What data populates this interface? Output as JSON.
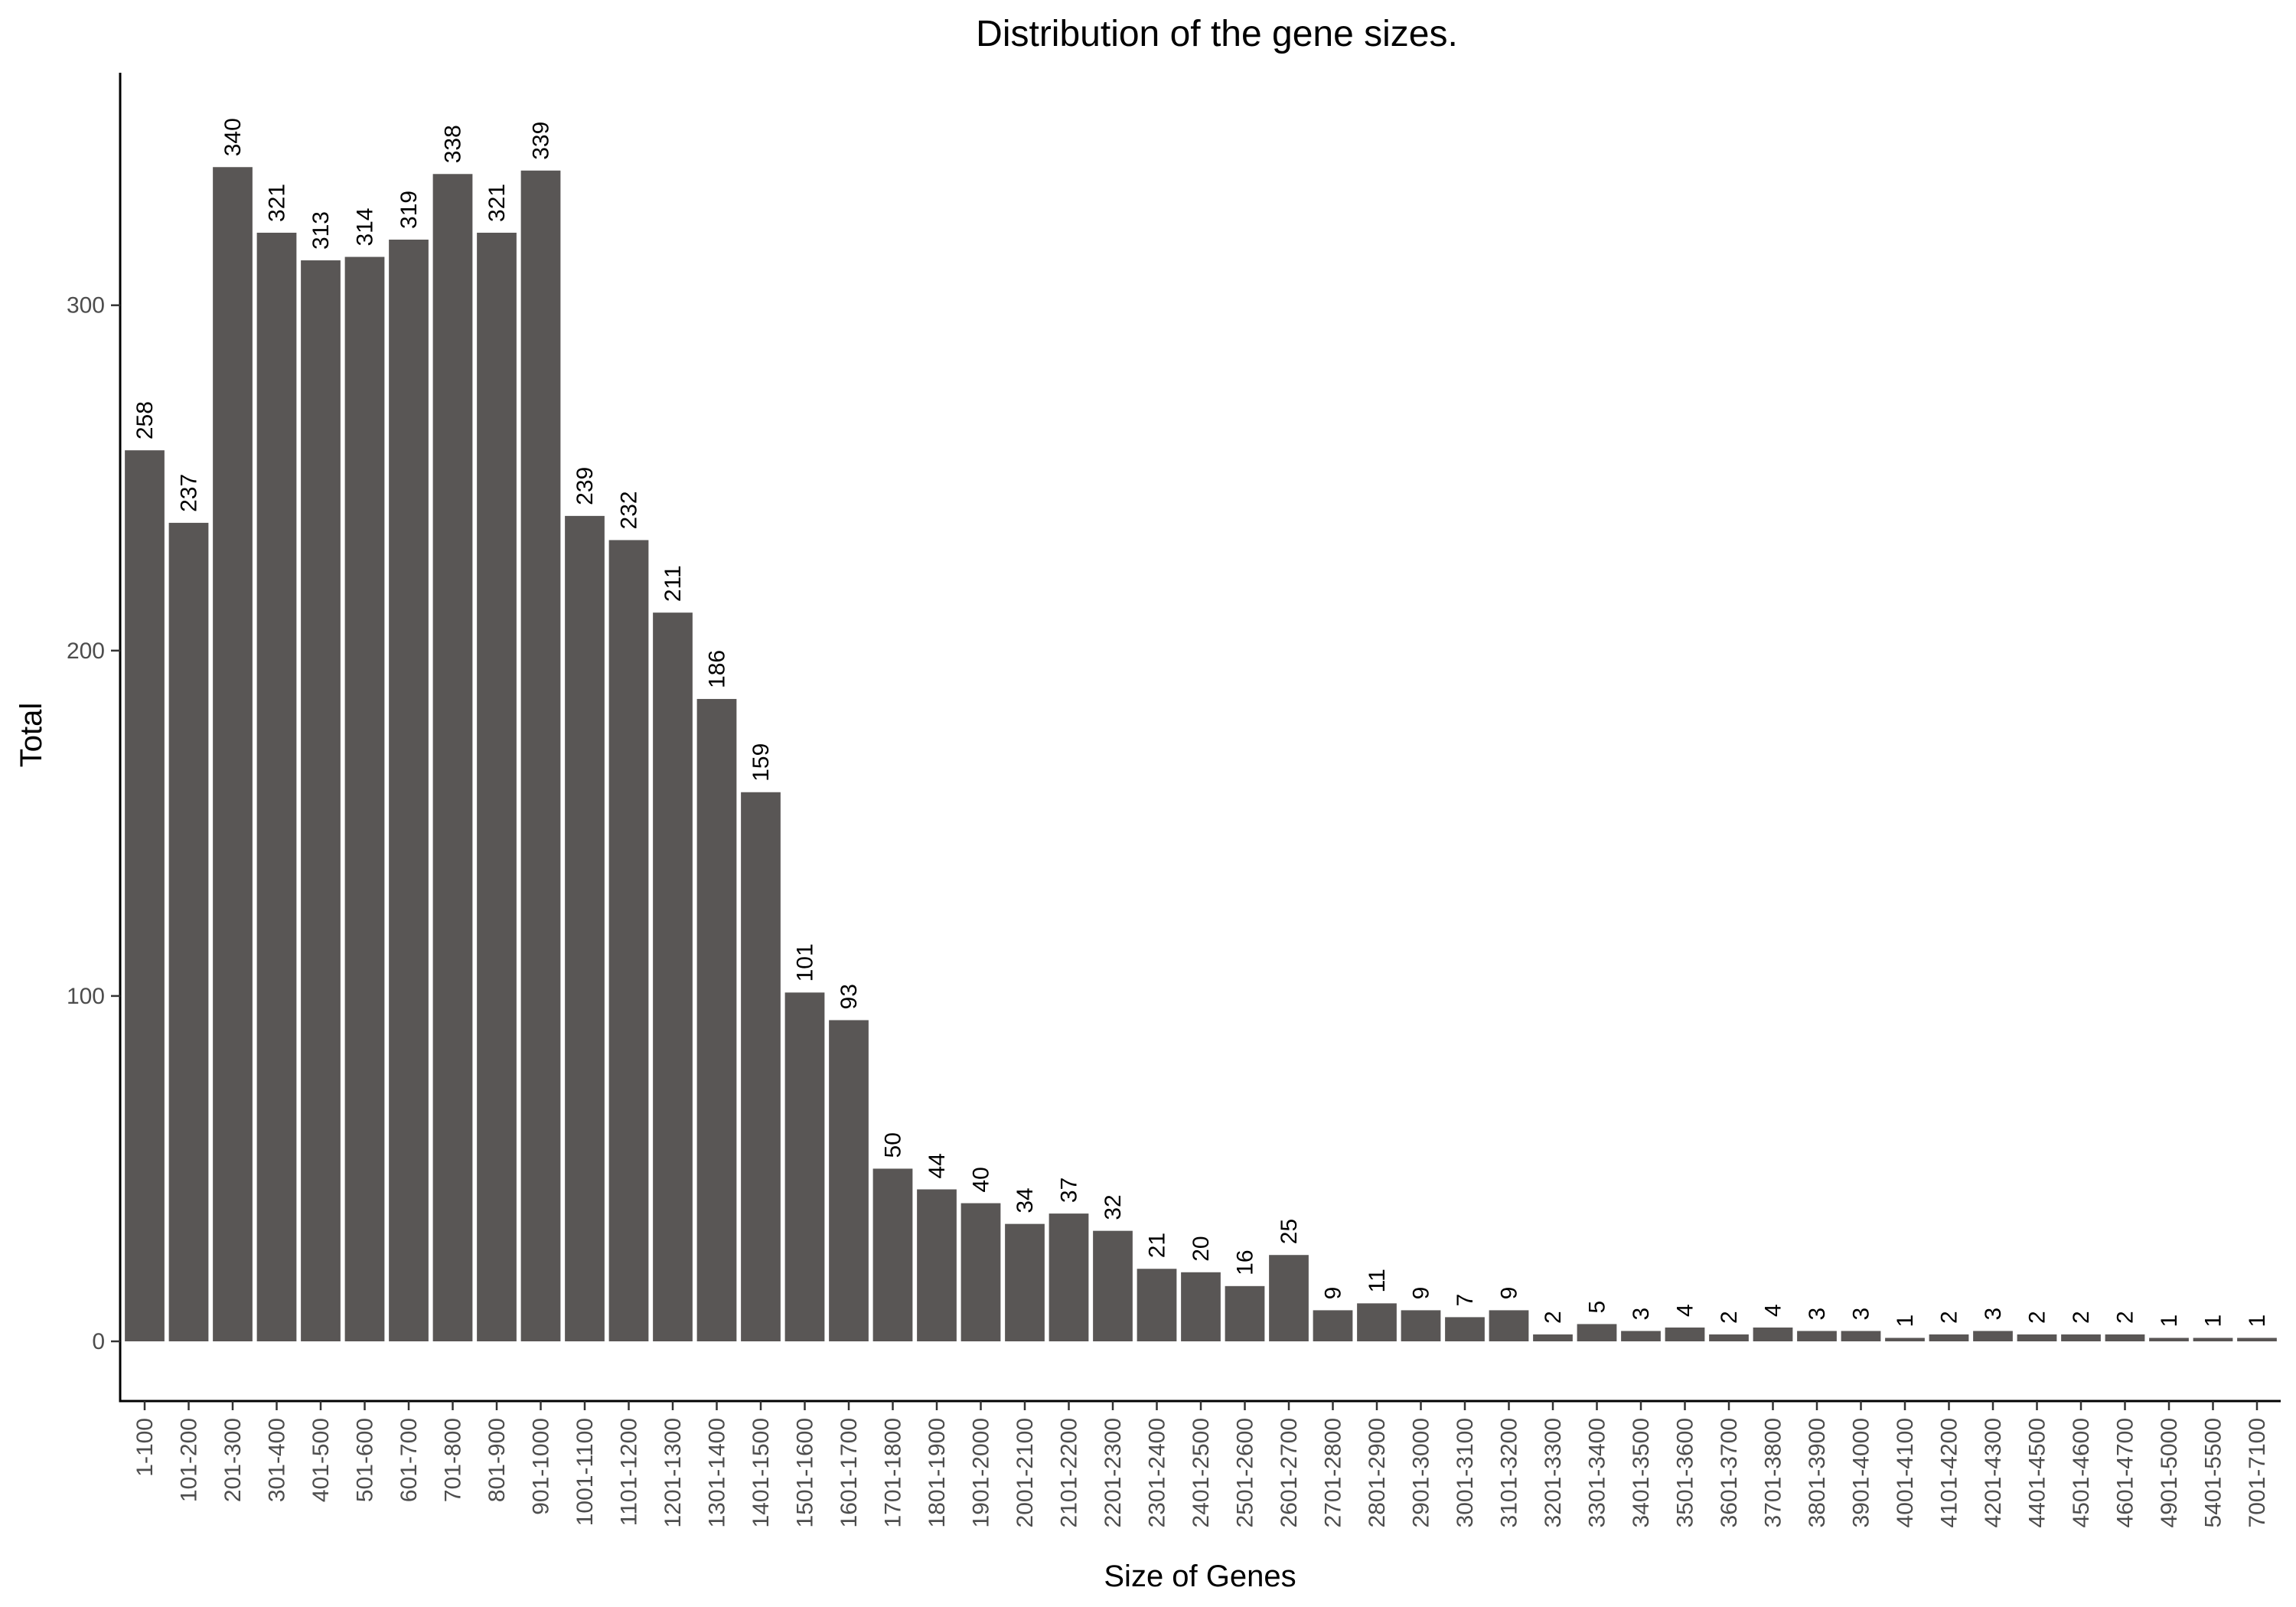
{
  "chart_data": {
    "type": "bar",
    "title": "Distribution of the gene sizes.",
    "xlabel": "Size of Genes",
    "ylabel": "Total",
    "ylim": [
      -17,
      370
    ],
    "yticks": [
      0,
      100,
      200,
      300
    ],
    "grid": false,
    "legend": "none",
    "bar_color": "#595655",
    "categories": [
      "1-100",
      "101-200",
      "201-300",
      "301-400",
      "401-500",
      "501-600",
      "601-700",
      "701-800",
      "801-900",
      "901-1000",
      "1001-1100",
      "1101-1200",
      "1201-1300",
      "1301-1400",
      "1401-1500",
      "1501-1600",
      "1601-1700",
      "1701-1800",
      "1801-1900",
      "1901-2000",
      "2001-2100",
      "2101-2200",
      "2201-2300",
      "2301-2400",
      "2401-2500",
      "2501-2600",
      "2601-2700",
      "2701-2800",
      "2801-2900",
      "2901-3000",
      "3001-3100",
      "3101-3200",
      "3201-3300",
      "3301-3400",
      "3401-3500",
      "3501-3600",
      "3601-3700",
      "3701-3800",
      "3801-3900",
      "3901-4000",
      "4001-4100",
      "4101-4200",
      "4201-4300",
      "4401-4500",
      "4501-4600",
      "4601-4700",
      "4901-5000",
      "5401-5500",
      "7001-7100"
    ],
    "values": [
      258,
      237,
      340,
      321,
      313,
      314,
      319,
      338,
      321,
      339,
      239,
      232,
      211,
      186,
      159,
      101,
      93,
      50,
      44,
      40,
      34,
      37,
      32,
      21,
      20,
      16,
      25,
      9,
      11,
      9,
      7,
      9,
      2,
      5,
      3,
      4,
      2,
      4,
      3,
      3,
      1,
      2,
      3,
      2,
      2,
      2,
      1,
      1,
      1
    ]
  }
}
